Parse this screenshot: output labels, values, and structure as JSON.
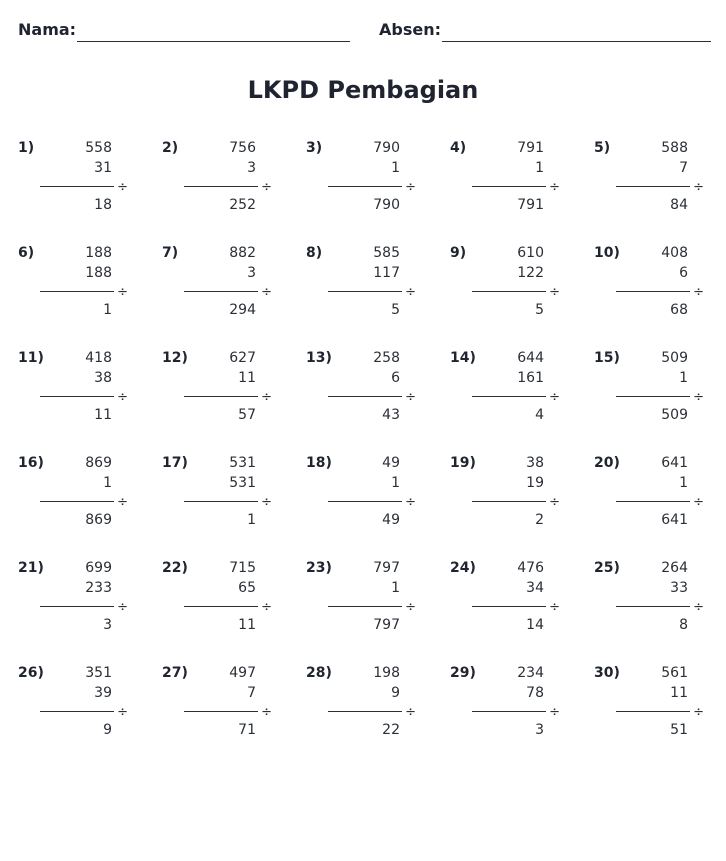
{
  "header": {
    "name_label": "Nama:",
    "absen_label": "Absen:"
  },
  "title": "LKPD Pembagian",
  "operator": "÷",
  "problems": [
    {
      "no": "1)",
      "dividend": "558",
      "divisor": "31",
      "answer": "18"
    },
    {
      "no": "2)",
      "dividend": "756",
      "divisor": "3",
      "answer": "252"
    },
    {
      "no": "3)",
      "dividend": "790",
      "divisor": "1",
      "answer": "790"
    },
    {
      "no": "4)",
      "dividend": "791",
      "divisor": "1",
      "answer": "791"
    },
    {
      "no": "5)",
      "dividend": "588",
      "divisor": "7",
      "answer": "84"
    },
    {
      "no": "6)",
      "dividend": "188",
      "divisor": "188",
      "answer": "1"
    },
    {
      "no": "7)",
      "dividend": "882",
      "divisor": "3",
      "answer": "294"
    },
    {
      "no": "8)",
      "dividend": "585",
      "divisor": "117",
      "answer": "5"
    },
    {
      "no": "9)",
      "dividend": "610",
      "divisor": "122",
      "answer": "5"
    },
    {
      "no": "10)",
      "dividend": "408",
      "divisor": "6",
      "answer": "68"
    },
    {
      "no": "11)",
      "dividend": "418",
      "divisor": "38",
      "answer": "11"
    },
    {
      "no": "12)",
      "dividend": "627",
      "divisor": "11",
      "answer": "57"
    },
    {
      "no": "13)",
      "dividend": "258",
      "divisor": "6",
      "answer": "43"
    },
    {
      "no": "14)",
      "dividend": "644",
      "divisor": "161",
      "answer": "4"
    },
    {
      "no": "15)",
      "dividend": "509",
      "divisor": "1",
      "answer": "509"
    },
    {
      "no": "16)",
      "dividend": "869",
      "divisor": "1",
      "answer": "869"
    },
    {
      "no": "17)",
      "dividend": "531",
      "divisor": "531",
      "answer": "1"
    },
    {
      "no": "18)",
      "dividend": "49",
      "divisor": "1",
      "answer": "49"
    },
    {
      "no": "19)",
      "dividend": "38",
      "divisor": "19",
      "answer": "2"
    },
    {
      "no": "20)",
      "dividend": "641",
      "divisor": "1",
      "answer": "641"
    },
    {
      "no": "21)",
      "dividend": "699",
      "divisor": "233",
      "answer": "3"
    },
    {
      "no": "22)",
      "dividend": "715",
      "divisor": "65",
      "answer": "11"
    },
    {
      "no": "23)",
      "dividend": "797",
      "divisor": "1",
      "answer": "797"
    },
    {
      "no": "24)",
      "dividend": "476",
      "divisor": "34",
      "answer": "14"
    },
    {
      "no": "25)",
      "dividend": "264",
      "divisor": "33",
      "answer": "8"
    },
    {
      "no": "26)",
      "dividend": "351",
      "divisor": "39",
      "answer": "9"
    },
    {
      "no": "27)",
      "dividend": "497",
      "divisor": "7",
      "answer": "71"
    },
    {
      "no": "28)",
      "dividend": "198",
      "divisor": "9",
      "answer": "22"
    },
    {
      "no": "29)",
      "dividend": "234",
      "divisor": "78",
      "answer": "3"
    },
    {
      "no": "30)",
      "dividend": "561",
      "divisor": "11",
      "answer": "51"
    }
  ]
}
